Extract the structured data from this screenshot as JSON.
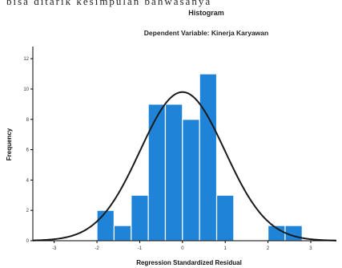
{
  "page": {
    "top_text": "bisa ditarik kesimpulan bahwasanya"
  },
  "chart_data": {
    "type": "bar",
    "title": "Histogram",
    "subtitle": "Dependent Variable: Kinerja Karyawan",
    "xlabel": "Regression Standardized Residual",
    "ylabel": "Frequency",
    "xlim": [
      -3.5,
      3.6
    ],
    "ylim": [
      0,
      12.8
    ],
    "x_ticks": [
      -3,
      -2,
      -1,
      0,
      1,
      2,
      3
    ],
    "x_tick_labels": [
      "-3",
      "-2",
      "-1",
      "0",
      "1",
      "2",
      "3"
    ],
    "y_ticks": [
      0,
      2,
      4,
      6,
      8,
      10,
      12
    ],
    "y_tick_labels": [
      "0",
      "2",
      "4",
      "6",
      "8",
      "10",
      "12"
    ],
    "bins": [
      {
        "x0": -2.0,
        "x1": -1.6,
        "count": 2
      },
      {
        "x0": -1.6,
        "x1": -1.2,
        "count": 1
      },
      {
        "x0": -1.2,
        "x1": -0.8,
        "count": 3
      },
      {
        "x0": -0.8,
        "x1": -0.4,
        "count": 9
      },
      {
        "x0": -0.4,
        "x1": 0.0,
        "count": 9
      },
      {
        "x0": 0.0,
        "x1": 0.4,
        "count": 8
      },
      {
        "x0": 0.4,
        "x1": 0.8,
        "count": 11
      },
      {
        "x0": 0.8,
        "x1": 1.2,
        "count": 3
      },
      {
        "x0": 2.0,
        "x1": 2.4,
        "count": 1
      },
      {
        "x0": 2.4,
        "x1": 2.8,
        "count": 1
      }
    ],
    "normal_curve": {
      "mean": 0.0,
      "std": 0.99,
      "peak": 9.8
    },
    "grid": false,
    "colors": {
      "bar": "#1f84d8",
      "bar_edge": "#ffffff",
      "curve": "#1a1a1a",
      "axis": "#000000"
    }
  }
}
